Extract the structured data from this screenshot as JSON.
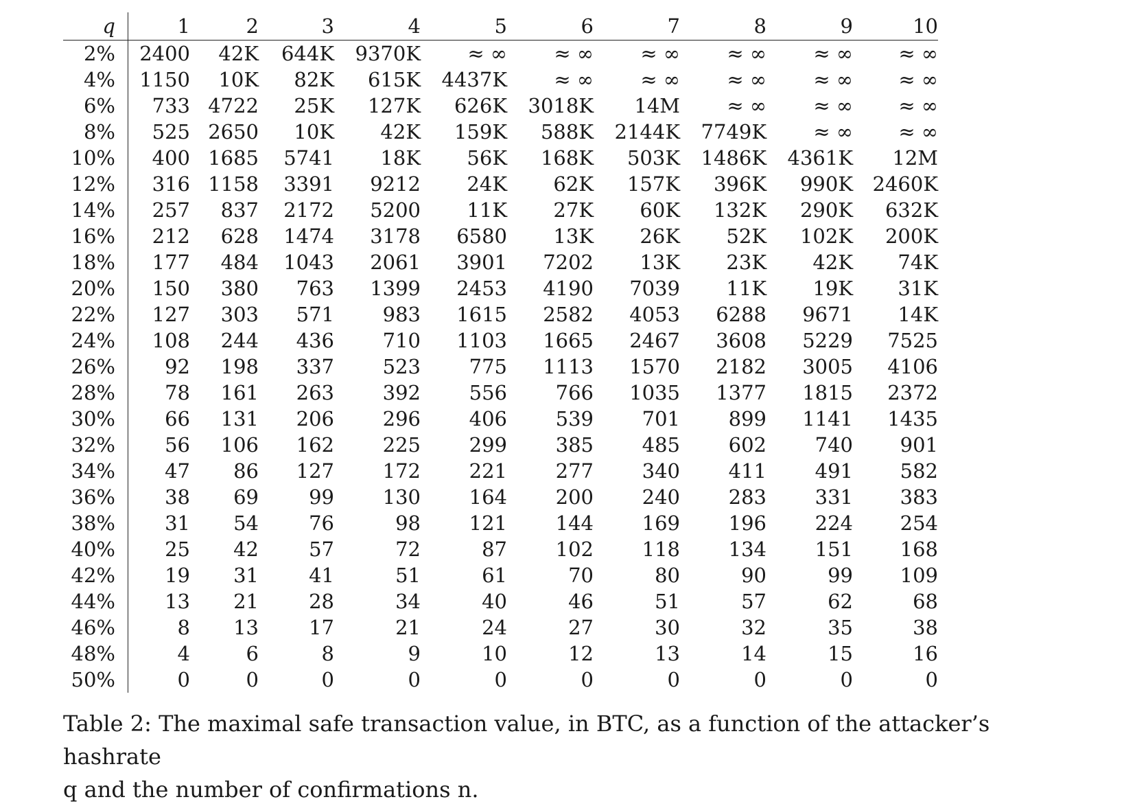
{
  "table": {
    "corner_label": "q",
    "columns": [
      "1",
      "2",
      "3",
      "4",
      "5",
      "6",
      "7",
      "8",
      "9",
      "10"
    ],
    "rows": [
      {
        "q": "2%",
        "values": [
          "2400",
          "42K",
          "644K",
          "9370K",
          "≈ ∞",
          "≈ ∞",
          "≈ ∞",
          "≈ ∞",
          "≈ ∞",
          "≈ ∞"
        ]
      },
      {
        "q": "4%",
        "values": [
          "1150",
          "10K",
          "82K",
          "615K",
          "4437K",
          "≈ ∞",
          "≈ ∞",
          "≈ ∞",
          "≈ ∞",
          "≈ ∞"
        ]
      },
      {
        "q": "6%",
        "values": [
          "733",
          "4722",
          "25K",
          "127K",
          "626K",
          "3018K",
          "14M",
          "≈ ∞",
          "≈ ∞",
          "≈ ∞"
        ]
      },
      {
        "q": "8%",
        "values": [
          "525",
          "2650",
          "10K",
          "42K",
          "159K",
          "588K",
          "2144K",
          "7749K",
          "≈ ∞",
          "≈ ∞"
        ]
      },
      {
        "q": "10%",
        "values": [
          "400",
          "1685",
          "5741",
          "18K",
          "56K",
          "168K",
          "503K",
          "1486K",
          "4361K",
          "12M"
        ]
      },
      {
        "q": "12%",
        "values": [
          "316",
          "1158",
          "3391",
          "9212",
          "24K",
          "62K",
          "157K",
          "396K",
          "990K",
          "2460K"
        ]
      },
      {
        "q": "14%",
        "values": [
          "257",
          "837",
          "2172",
          "5200",
          "11K",
          "27K",
          "60K",
          "132K",
          "290K",
          "632K"
        ]
      },
      {
        "q": "16%",
        "values": [
          "212",
          "628",
          "1474",
          "3178",
          "6580",
          "13K",
          "26K",
          "52K",
          "102K",
          "200K"
        ]
      },
      {
        "q": "18%",
        "values": [
          "177",
          "484",
          "1043",
          "2061",
          "3901",
          "7202",
          "13K",
          "23K",
          "42K",
          "74K"
        ]
      },
      {
        "q": "20%",
        "values": [
          "150",
          "380",
          "763",
          "1399",
          "2453",
          "4190",
          "7039",
          "11K",
          "19K",
          "31K"
        ]
      },
      {
        "q": "22%",
        "values": [
          "127",
          "303",
          "571",
          "983",
          "1615",
          "2582",
          "4053",
          "6288",
          "9671",
          "14K"
        ]
      },
      {
        "q": "24%",
        "values": [
          "108",
          "244",
          "436",
          "710",
          "1103",
          "1665",
          "2467",
          "3608",
          "5229",
          "7525"
        ]
      },
      {
        "q": "26%",
        "values": [
          "92",
          "198",
          "337",
          "523",
          "775",
          "1113",
          "1570",
          "2182",
          "3005",
          "4106"
        ]
      },
      {
        "q": "28%",
        "values": [
          "78",
          "161",
          "263",
          "392",
          "556",
          "766",
          "1035",
          "1377",
          "1815",
          "2372"
        ]
      },
      {
        "q": "30%",
        "values": [
          "66",
          "131",
          "206",
          "296",
          "406",
          "539",
          "701",
          "899",
          "1141",
          "1435"
        ]
      },
      {
        "q": "32%",
        "values": [
          "56",
          "106",
          "162",
          "225",
          "299",
          "385",
          "485",
          "602",
          "740",
          "901"
        ]
      },
      {
        "q": "34%",
        "values": [
          "47",
          "86",
          "127",
          "172",
          "221",
          "277",
          "340",
          "411",
          "491",
          "582"
        ]
      },
      {
        "q": "36%",
        "values": [
          "38",
          "69",
          "99",
          "130",
          "164",
          "200",
          "240",
          "283",
          "331",
          "383"
        ]
      },
      {
        "q": "38%",
        "values": [
          "31",
          "54",
          "76",
          "98",
          "121",
          "144",
          "169",
          "196",
          "224",
          "254"
        ]
      },
      {
        "q": "40%",
        "values": [
          "25",
          "42",
          "57",
          "72",
          "87",
          "102",
          "118",
          "134",
          "151",
          "168"
        ]
      },
      {
        "q": "42%",
        "values": [
          "19",
          "31",
          "41",
          "51",
          "61",
          "70",
          "80",
          "90",
          "99",
          "109"
        ]
      },
      {
        "q": "44%",
        "values": [
          "13",
          "21",
          "28",
          "34",
          "40",
          "46",
          "51",
          "57",
          "62",
          "68"
        ]
      },
      {
        "q": "46%",
        "values": [
          "8",
          "13",
          "17",
          "21",
          "24",
          "27",
          "30",
          "32",
          "35",
          "38"
        ]
      },
      {
        "q": "48%",
        "values": [
          "4",
          "6",
          "8",
          "9",
          "10",
          "12",
          "13",
          "14",
          "15",
          "16"
        ]
      },
      {
        "q": "50%",
        "values": [
          "0",
          "0",
          "0",
          "0",
          "0",
          "0",
          "0",
          "0",
          "0",
          "0"
        ]
      }
    ]
  },
  "caption": {
    "line1": "Table 2: The maximal safe transaction value, in BTC, as a function of the attacker’s hashrate",
    "line2": "q and the number of confirmations n."
  }
}
